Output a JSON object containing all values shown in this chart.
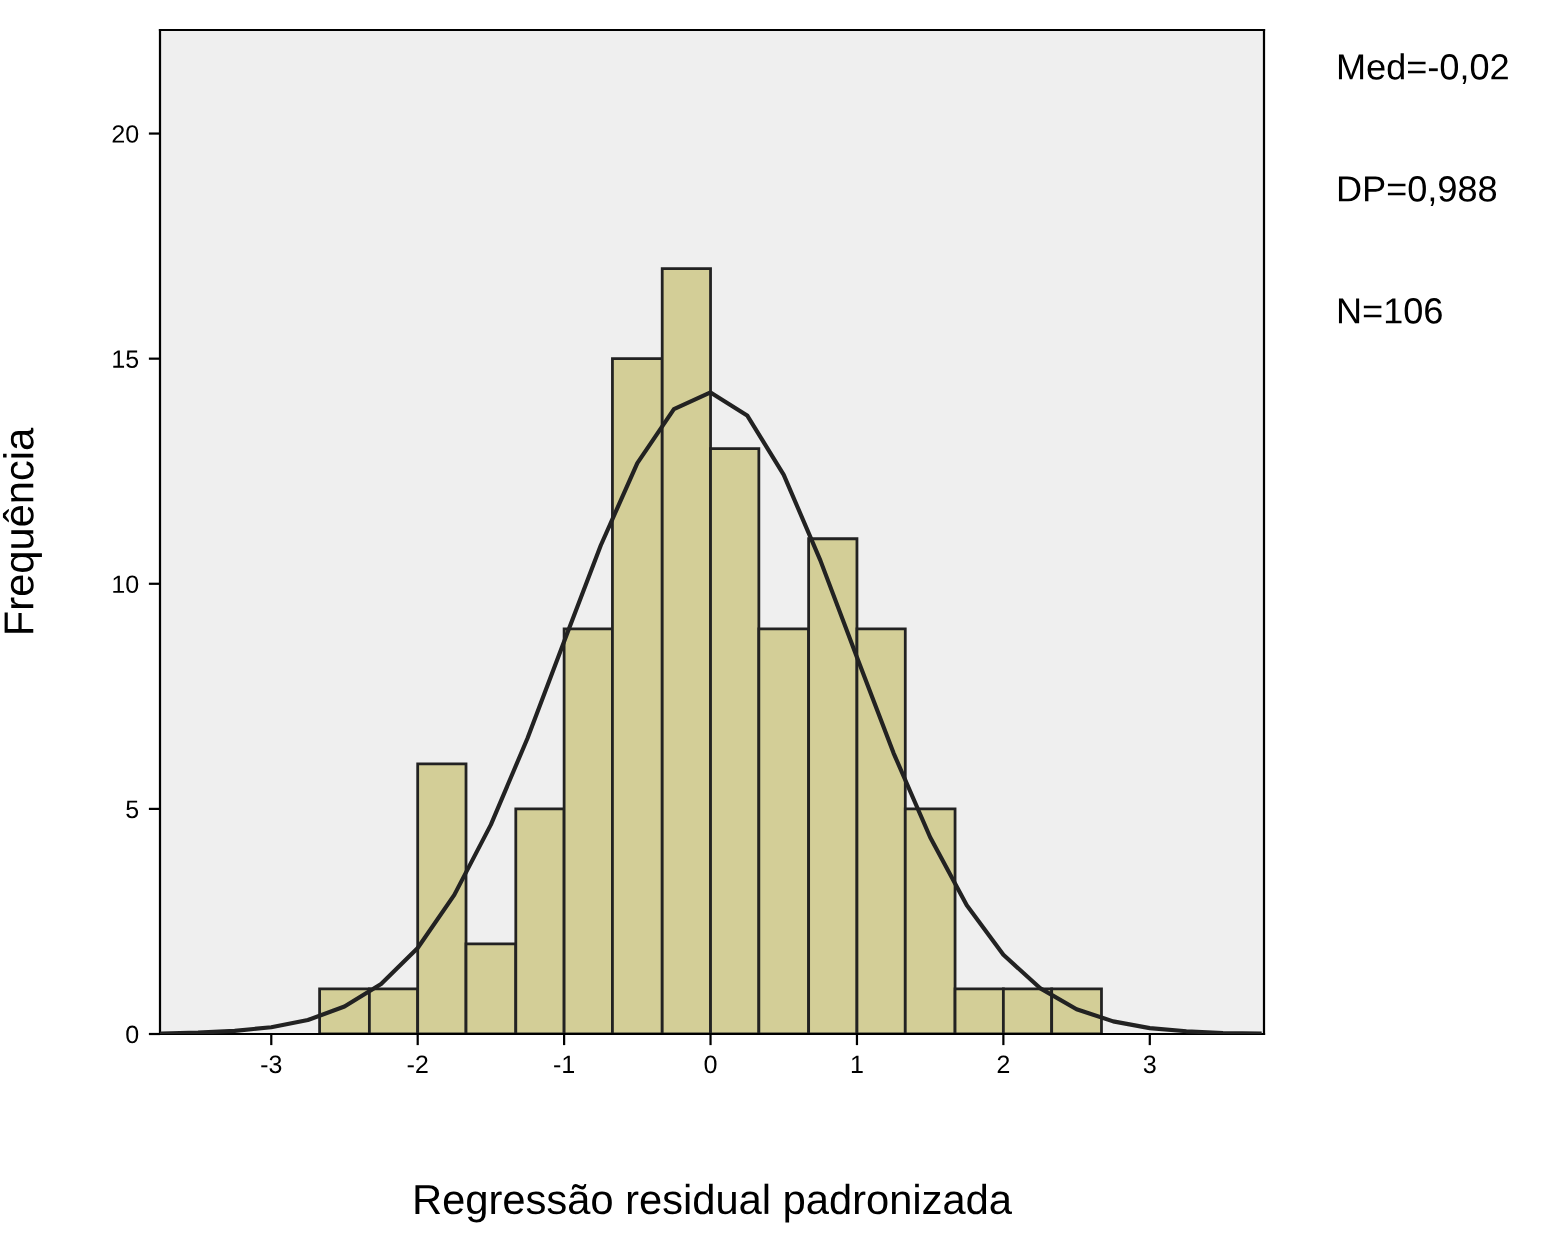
{
  "chart_data": {
    "type": "histogram",
    "xlabel": "Regressão residual padronizada",
    "ylabel": "Frequência",
    "bins": [
      -2.67,
      -2.33,
      -2,
      -1.67,
      -1.33,
      -1,
      -0.67,
      -0.33,
      0,
      0.33,
      0.67,
      1,
      1.33,
      1.67,
      2,
      2.33,
      2.67
    ],
    "values": [
      1,
      1,
      6,
      2,
      5,
      9,
      15,
      17,
      13,
      9,
      11,
      9,
      5,
      1,
      1,
      1
    ],
    "color": "#d3ce97",
    "series": [
      {
        "type": "line",
        "color": "#222222",
        "x": [
          -3.75,
          -3.5,
          -3.25,
          -3,
          -2.75,
          -2.5,
          -2.25,
          -2,
          -1.75,
          -1.5,
          -1.25,
          -1,
          -0.75,
          -0.5,
          -0.25,
          0,
          0.25,
          0.5,
          0.75,
          1,
          1.25,
          1.5,
          1.75,
          2,
          2.25,
          2.5,
          2.75,
          3,
          3.25,
          3.5,
          3.75
        ],
        "values": [
          0.01,
          0.03,
          0.07,
          0.15,
          0.31,
          0.61,
          1.11,
          1.91,
          3.09,
          4.65,
          6.57,
          8.72,
          10.85,
          12.68,
          13.88,
          14.25,
          13.74,
          12.42,
          10.52,
          8.37,
          6.24,
          4.37,
          2.86,
          1.76,
          1.02,
          0.55,
          0.28,
          0.13,
          0.06,
          0.02,
          0.01
        ]
      }
    ],
    "xlim": [
      -3.76,
      3.78
    ],
    "ylim": [
      0,
      22.3
    ],
    "xticks": [
      -3,
      -2,
      -1,
      0,
      1,
      2,
      3
    ],
    "yticks": [
      0,
      5,
      10,
      15,
      20
    ],
    "annotations": [
      "Med=-0,02",
      "DP=0,988",
      "N=106"
    ]
  }
}
